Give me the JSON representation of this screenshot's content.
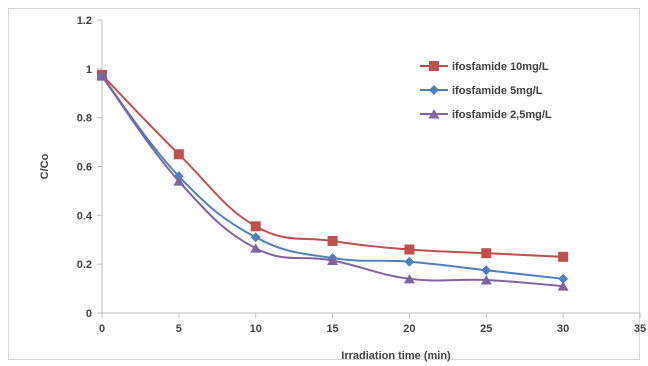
{
  "chart_data": {
    "type": "line",
    "title": "",
    "xlabel": "Irradiation time (min)",
    "ylabel": "C/Co",
    "xlim": [
      0,
      35
    ],
    "ylim": [
      0,
      1.2
    ],
    "x_ticks": [
      0,
      5,
      10,
      15,
      20,
      25,
      30,
      35
    ],
    "y_ticks": [
      0,
      0.2,
      0.4,
      0.6,
      0.8,
      1,
      1.2
    ],
    "x_tick_labels": [
      "0",
      "5",
      "10",
      "15",
      "20",
      "25",
      "30",
      "35"
    ],
    "y_tick_labels": [
      "0",
      "0.2",
      "0.4",
      "0.6",
      "0.8",
      "1",
      "1.2"
    ],
    "x": [
      0,
      5,
      10,
      15,
      20,
      25,
      30
    ],
    "grid": false,
    "legend_position": "top-right",
    "series": [
      {
        "name": "ifosfamide 10mg/L",
        "values": [
          0.975,
          0.65,
          0.355,
          0.295,
          0.26,
          0.245,
          0.23
        ],
        "color": "#c0504d",
        "marker": "square"
      },
      {
        "name": "ifosfamide 5mg/L",
        "values": [
          0.97,
          0.56,
          0.31,
          0.225,
          0.21,
          0.175,
          0.14
        ],
        "color": "#4f81bd",
        "marker": "diamond"
      },
      {
        "name": "ifosfamide 2,5mg/L",
        "values": [
          0.97,
          0.54,
          0.265,
          0.215,
          0.14,
          0.135,
          0.11
        ],
        "color": "#8064a2",
        "marker": "triangle"
      }
    ]
  }
}
